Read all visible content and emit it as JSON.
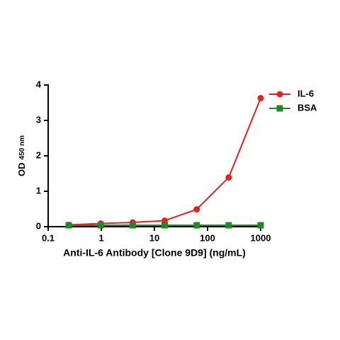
{
  "chart_data": {
    "type": "line",
    "x_label": "Anti-IL-6 Antibody [Clone 9D9] (ng/mL)",
    "y_label": "OD",
    "y_label_sub": "450 nm",
    "x": [
      0.244,
      0.977,
      3.91,
      15.6,
      62.5,
      250,
      1000
    ],
    "series": [
      {
        "name": "IL-6",
        "color": "#e8211f",
        "marker": "circle",
        "values": [
          0.05,
          0.09,
          0.12,
          0.17,
          0.49,
          1.39,
          3.63
        ]
      },
      {
        "name": "BSA",
        "color": "#1f8a24",
        "marker": "square",
        "values": [
          0.04,
          0.04,
          0.04,
          0.04,
          0.04,
          0.04,
          0.04
        ]
      }
    ],
    "xscale": "log",
    "xlim": [
      0.1,
      1000
    ],
    "xticks": [
      0.1,
      1,
      10,
      100,
      1000
    ],
    "ylim": [
      0,
      4
    ],
    "yticks": [
      0,
      1,
      2,
      3,
      4
    ],
    "legend": "top-right"
  }
}
